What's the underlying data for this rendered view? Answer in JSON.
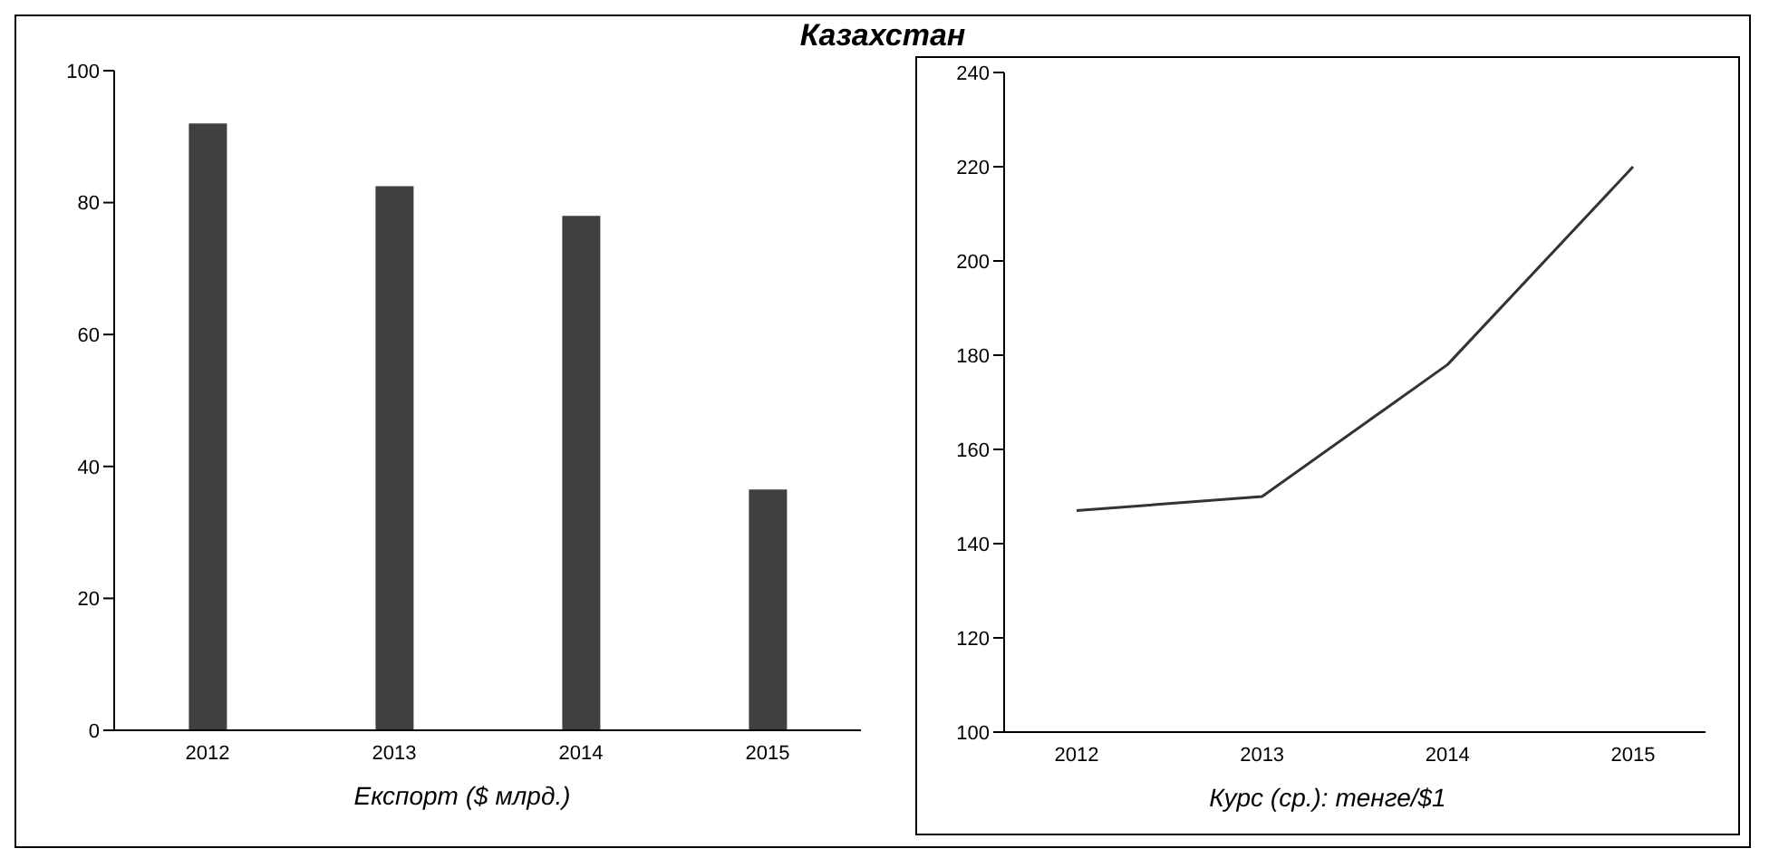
{
  "chart_data": [
    {
      "type": "bar",
      "title": "Казахстан",
      "categories": [
        "2012",
        "2013",
        "2014",
        "2015"
      ],
      "values": [
        92,
        82.5,
        78,
        36.5
      ],
      "color": "#404040",
      "ylim": [
        0,
        100
      ],
      "yticks": [
        0,
        20,
        40,
        60,
        80,
        100
      ],
      "xlabel": "Експорт ($ млрд.)"
    },
    {
      "type": "line",
      "categories": [
        "2012",
        "2013",
        "2014",
        "2015"
      ],
      "values": [
        147,
        150,
        178,
        220
      ],
      "color": "#333333",
      "ylim": [
        100,
        240
      ],
      "yticks": [
        100,
        120,
        140,
        160,
        180,
        200,
        220,
        240
      ],
      "xlabel": "Курс (ср.): тенге/$1",
      "marker": "none"
    }
  ]
}
